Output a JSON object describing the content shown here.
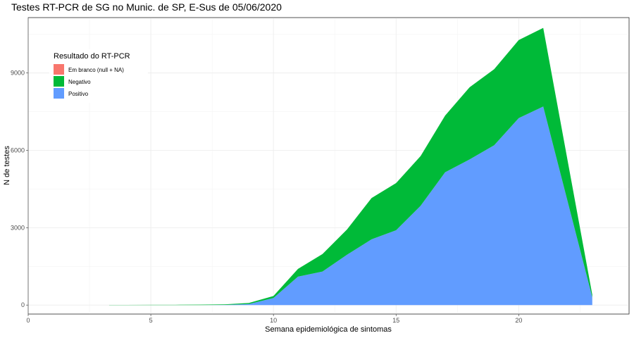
{
  "chart_data": {
    "type": "area",
    "stacked": true,
    "title": "Testes RT-PCR de SG no Munic. de SP, E-Sus de 05/06/2020",
    "xlabel": "Semana epidemiológica de sintomas",
    "ylabel": "N de testes",
    "xlim": [
      0,
      24.5
    ],
    "ylim": [
      -350,
      11150
    ],
    "x_ticks": [
      0,
      5,
      10,
      15,
      20
    ],
    "y_ticks": [
      0,
      3000,
      6000,
      9000
    ],
    "x_tick_labels": [
      "0",
      "5",
      "10",
      "15",
      "20"
    ],
    "y_tick_labels": [
      "0",
      "3000",
      "6000",
      "9000"
    ],
    "grid": true,
    "legend": {
      "title": "Resultado do RT-PCR",
      "position": "top-left",
      "entries": [
        "Em branco (null + NA)",
        "Negativo",
        "Positivo"
      ]
    },
    "x": [
      3.3,
      4,
      5,
      6,
      7,
      8,
      9,
      10,
      11,
      12,
      13,
      14,
      15,
      16,
      17,
      18,
      19,
      20,
      21,
      23
    ],
    "series": [
      {
        "name": "Positivo",
        "color": "#619CFF",
        "values": [
          0,
          0,
          0,
          0,
          0,
          5,
          40,
          270,
          1100,
          1300,
          1950,
          2550,
          2900,
          3850,
          5150,
          5650,
          6200,
          7250,
          7700,
          300
        ]
      },
      {
        "name": "Negativo",
        "color": "#00BA38",
        "values": [
          5,
          5,
          10,
          10,
          15,
          20,
          40,
          80,
          300,
          680,
          980,
          1600,
          1830,
          1930,
          2200,
          2800,
          2950,
          3030,
          3050,
          100
        ]
      },
      {
        "name": "Em branco (null + NA)",
        "color": "#F8766D",
        "values": [
          0,
          0,
          0,
          0,
          0,
          0,
          0,
          0,
          0,
          0,
          0,
          0,
          0,
          0,
          0,
          0,
          0,
          0,
          0,
          0
        ]
      }
    ]
  }
}
